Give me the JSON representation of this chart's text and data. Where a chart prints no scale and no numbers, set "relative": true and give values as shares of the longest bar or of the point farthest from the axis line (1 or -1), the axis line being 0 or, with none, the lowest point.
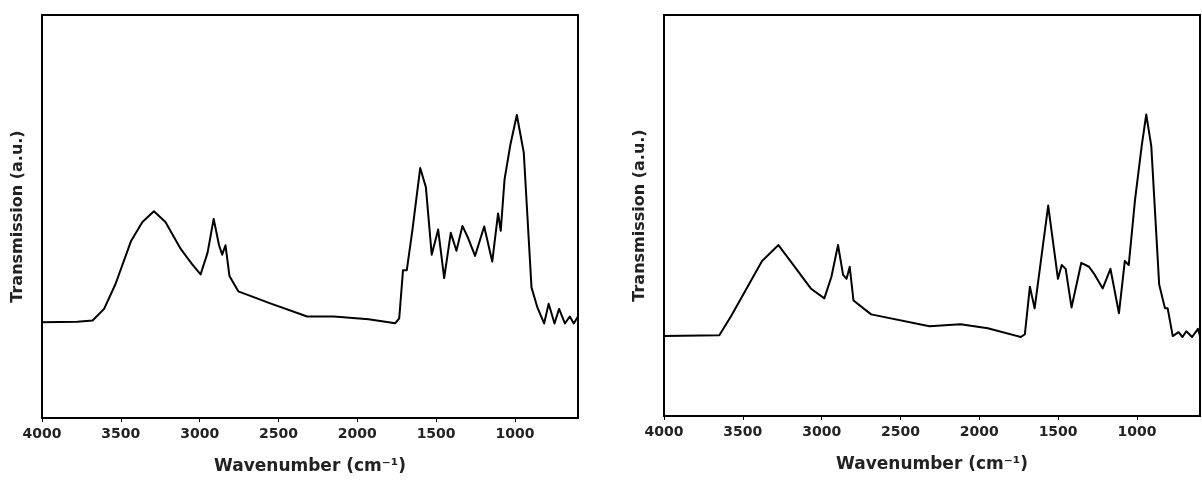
{
  "chart_data": [
    {
      "type": "line",
      "xlabel": "Wavenumber (cm⁻¹)",
      "ylabel": "Transmission (a.u.)",
      "relative": true,
      "marker": "none",
      "grid": false,
      "xlim": [
        4000,
        600
      ],
      "xticks": [
        4000,
        3500,
        3000,
        2500,
        2000,
        1500,
        1000
      ],
      "series": [
        {
          "color": "#000000",
          "x": [
            4000,
            3776,
            3679,
            3606,
            3533,
            3436,
            3363,
            3290,
            3217,
            3120,
            3047,
            2994,
            2950,
            2911,
            2877,
            2857,
            2836,
            2811,
            2755,
            2561,
            2318,
            2148,
            1929,
            1759,
            1734,
            1710,
            1686,
            1650,
            1601,
            1565,
            1528,
            1487,
            1449,
            1407,
            1371,
            1333,
            1297,
            1253,
            1195,
            1144,
            1107,
            1090,
            1066,
            1029,
            988,
            944,
            895,
            859,
            815,
            786,
            749,
            720,
            683,
            652,
            627,
            600
          ],
          "values": [
            0.316,
            0.318,
            0.322,
            0.36,
            0.443,
            0.583,
            0.647,
            0.682,
            0.647,
            0.558,
            0.507,
            0.474,
            0.545,
            0.657,
            0.57,
            0.539,
            0.57,
            0.469,
            0.418,
            0.38,
            0.335,
            0.335,
            0.326,
            0.313,
            0.329,
            0.488,
            0.488,
            0.622,
            0.825,
            0.762,
            0.539,
            0.622,
            0.462,
            0.611,
            0.552,
            0.634,
            0.594,
            0.535,
            0.632,
            0.516,
            0.675,
            0.618,
            0.787,
            0.902,
            1.0,
            0.876,
            0.431,
            0.367,
            0.312,
            0.377,
            0.312,
            0.36,
            0.312,
            0.335,
            0.312,
            0.335
          ]
        }
      ]
    },
    {
      "type": "line",
      "xlabel": "Wavenumber (cm⁻¹)",
      "ylabel": "Transmission (a.u.)",
      "relative": true,
      "marker": "none",
      "grid": false,
      "xlim": [
        4000,
        600
      ],
      "xticks": [
        4000,
        3500,
        3000,
        2500,
        2000,
        1500,
        1000
      ],
      "series": [
        {
          "color": "#000000",
          "x": [
            4000,
            3649,
            3575,
            3476,
            3378,
            3274,
            3180,
            3069,
            2983,
            2938,
            2896,
            2864,
            2842,
            2822,
            2798,
            2686,
            2316,
            2119,
            1946,
            1736,
            1711,
            1679,
            1649,
            1563,
            1501,
            1477,
            1452,
            1415,
            1353,
            1304,
            1267,
            1217,
            1168,
            1114,
            1077,
            1052,
            1012,
            970,
            941,
            909,
            859,
            822,
            805,
            773,
            736,
            711,
            687,
            650,
            613,
            600
          ],
          "values": [
            0.265,
            0.268,
            0.331,
            0.423,
            0.514,
            0.567,
            0.501,
            0.423,
            0.39,
            0.462,
            0.567,
            0.468,
            0.455,
            0.495,
            0.383,
            0.337,
            0.298,
            0.304,
            0.291,
            0.262,
            0.271,
            0.429,
            0.357,
            0.698,
            0.455,
            0.501,
            0.488,
            0.36,
            0.508,
            0.495,
            0.468,
            0.423,
            0.488,
            0.341,
            0.514,
            0.501,
            0.718,
            0.895,
            1.0,
            0.895,
            0.436,
            0.357,
            0.357,
            0.265,
            0.278,
            0.262,
            0.281,
            0.262,
            0.289,
            0.265
          ]
        }
      ]
    }
  ]
}
